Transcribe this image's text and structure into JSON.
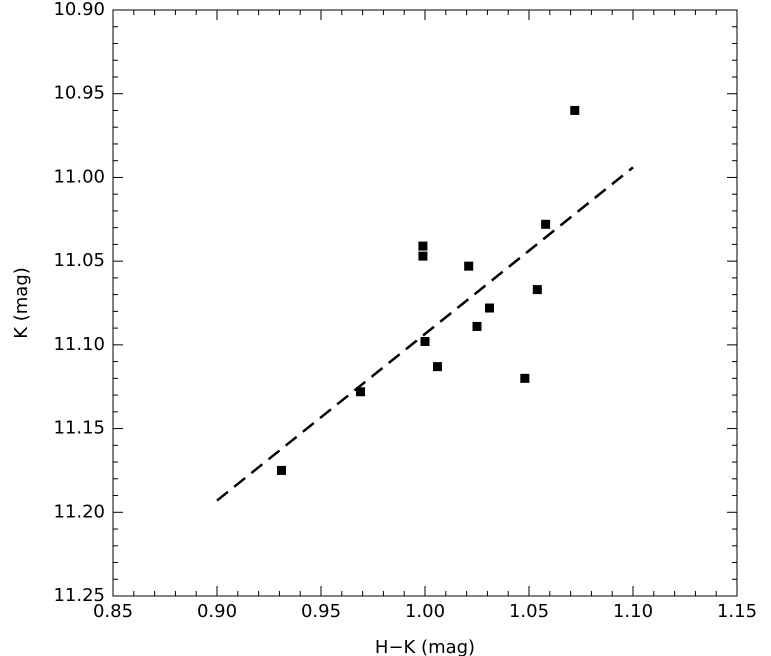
{
  "chart_data": {
    "type": "scatter",
    "x_label": "H−K (mag)",
    "y_label": "K (mag)",
    "xlim": [
      0.85,
      1.15
    ],
    "ylim": [
      10.9,
      11.25
    ],
    "y_inverted": true,
    "xticks": [
      0.85,
      {
        "value": 0.9,
        "label": "0.90"
      },
      0.95,
      {
        "value": 1.0,
        "label": "1.00"
      },
      1.05,
      {
        "value": 1.1,
        "label": "1.10"
      },
      1.15
    ],
    "yticks": [
      {
        "value": 10.9,
        "label": "10.90"
      },
      10.95,
      {
        "value": 11.0,
        "label": "11.00"
      },
      11.05,
      {
        "value": 11.1,
        "label": "11.10"
      },
      11.15,
      {
        "value": 11.2,
        "label": "11.20"
      },
      11.25
    ],
    "series": [
      {
        "marker": "square",
        "color": "#000000",
        "x": [
          1.072,
          1.058,
          0.999,
          0.999,
          1.021,
          1.054,
          1.031,
          1.025,
          1.0,
          1.006,
          1.048,
          0.969,
          0.931
        ],
        "values": [
          10.96,
          11.028,
          11.041,
          11.047,
          11.053,
          11.067,
          11.078,
          11.089,
          11.098,
          11.113,
          11.12,
          11.128,
          11.175
        ]
      },
      {
        "line_style": "dashed",
        "color": "#000000",
        "x": [
          0.9,
          1.1
        ],
        "values": [
          11.193,
          10.994
        ]
      }
    ]
  }
}
